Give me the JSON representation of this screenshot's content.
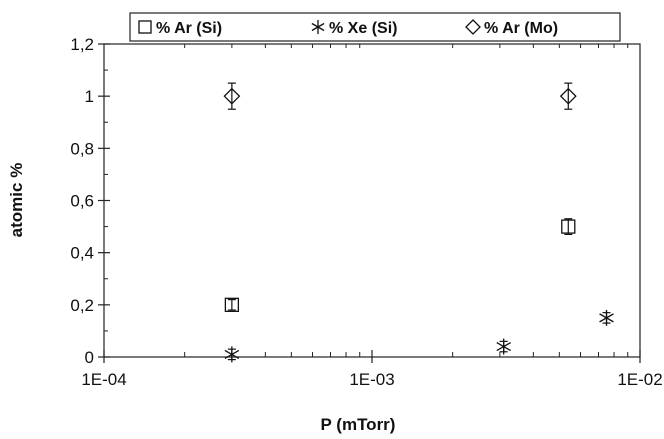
{
  "chart_data": {
    "type": "scatter",
    "xlabel": "P (mTorr)",
    "ylabel": "atomic %",
    "x_scale": "log",
    "xlim": [
      0.0001,
      0.01
    ],
    "ylim": [
      0,
      1.2
    ],
    "x_ticks": [
      {
        "value": 0.0001,
        "label": "1E-04"
      },
      {
        "value": 0.001,
        "label": "1E-03"
      },
      {
        "value": 0.01,
        "label": "1E-02"
      }
    ],
    "y_ticks": [
      {
        "value": 0,
        "label": "0"
      },
      {
        "value": 0.2,
        "label": "0,2"
      },
      {
        "value": 0.4,
        "label": "0,4"
      },
      {
        "value": 0.6,
        "label": "0,6"
      },
      {
        "value": 0.8,
        "label": "0,8"
      },
      {
        "value": 1.0,
        "label": "1"
      },
      {
        "value": 1.2,
        "label": "1,2"
      }
    ],
    "grid": false,
    "legend_position": "top",
    "series": [
      {
        "name": "% Ar (Si)",
        "marker": "square",
        "points": [
          {
            "x": 0.0003,
            "y": 0.2,
            "err": 0.02
          },
          {
            "x": 0.0054,
            "y": 0.5,
            "err": 0.03
          }
        ]
      },
      {
        "name": "% Xe (Si)",
        "marker": "asterisk",
        "points": [
          {
            "x": 0.0003,
            "y": 0.01,
            "err": 0.02
          },
          {
            "x": 0.0031,
            "y": 0.04,
            "err": 0.02
          },
          {
            "x": 0.0075,
            "y": 0.15,
            "err": 0.02
          }
        ]
      },
      {
        "name": "% Ar (Mo)",
        "marker": "diamond",
        "points": [
          {
            "x": 0.0003,
            "y": 1.0,
            "err": 0.05
          },
          {
            "x": 0.0054,
            "y": 1.0,
            "err": 0.05
          }
        ]
      }
    ]
  }
}
